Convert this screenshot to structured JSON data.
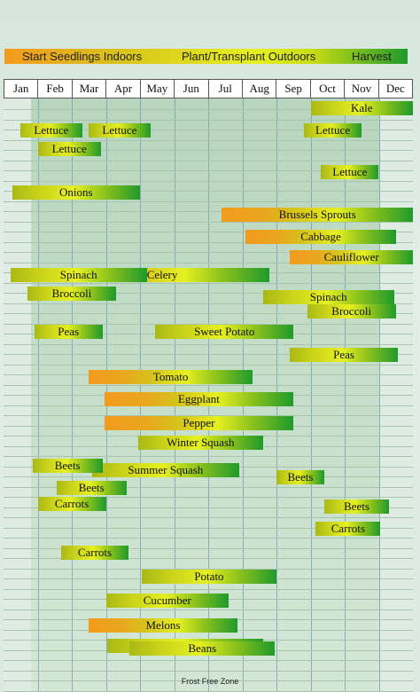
{
  "legend": {
    "start": "Start Seedlings Indoors",
    "plant": "Plant/Transplant Outdoors",
    "harvest": "Harvest"
  },
  "colors": {
    "start": "#f39a1e",
    "plant": "#e6f020",
    "harvest": "#1f9a2c",
    "frost_free_zone": "#c0dcc4"
  },
  "footer": {
    "frost_free_zone": "Frost Free Zone"
  },
  "chart_data": {
    "type": "bar",
    "subtype": "gantt",
    "months": [
      "Jan",
      "Feb",
      "Mar",
      "Apr",
      "May",
      "Jun",
      "Jul",
      "Aug",
      "Sep",
      "Oct",
      "Nov",
      "Dec"
    ],
    "frost_free_zone": [
      0.8,
      11.05
    ],
    "grid": true,
    "tasks": [
      {
        "label": "Kale",
        "start": 9.0,
        "end": 12.0,
        "phases": [
          "plant",
          "harvest"
        ]
      },
      {
        "label": "Lettuce",
        "start": 0.5,
        "end": 2.3,
        "phases": [
          "plant",
          "harvest"
        ]
      },
      {
        "label": "Lettuce",
        "start": 2.5,
        "end": 4.3,
        "phases": [
          "plant",
          "harvest"
        ]
      },
      {
        "label": "Lettuce",
        "start": 8.8,
        "end": 10.5,
        "phases": [
          "plant",
          "harvest"
        ]
      },
      {
        "label": "Lettuce",
        "start": 1.0,
        "end": 2.85,
        "phases": [
          "plant",
          "harvest"
        ]
      },
      {
        "label": "Lettuce",
        "start": 9.3,
        "end": 11.0,
        "phases": [
          "plant",
          "harvest"
        ]
      },
      {
        "label": "Onions",
        "start": 0.25,
        "end": 4.0,
        "phases": [
          "plant",
          "harvest"
        ]
      },
      {
        "label": "Brussels Sprouts",
        "start": 6.4,
        "end": 12.0,
        "phases": [
          "start",
          "plant",
          "harvest"
        ]
      },
      {
        "label": "Cabbage",
        "start": 7.1,
        "end": 11.5,
        "phases": [
          "start",
          "plant",
          "harvest"
        ]
      },
      {
        "label": "Cauliflower",
        "start": 8.4,
        "end": 12.0,
        "phases": [
          "start",
          "plant",
          "harvest"
        ]
      },
      {
        "label": "Celery",
        "start": 1.5,
        "end": 7.8,
        "phases": [
          "start",
          "plant",
          "harvest"
        ]
      },
      {
        "label": "Spinach",
        "start": 0.2,
        "end": 4.2,
        "phases": [
          "plant",
          "harvest"
        ]
      },
      {
        "label": "Spinach",
        "start": 7.6,
        "end": 11.45,
        "phases": [
          "plant",
          "harvest"
        ]
      },
      {
        "label": "Broccoli",
        "start": 0.7,
        "end": 3.3,
        "phases": [
          "plant",
          "harvest"
        ]
      },
      {
        "label": "Broccoli",
        "start": 8.9,
        "end": 11.5,
        "phases": [
          "plant",
          "harvest"
        ]
      },
      {
        "label": "Sweet Potato",
        "start": 4.45,
        "end": 8.5,
        "phases": [
          "plant",
          "harvest"
        ]
      },
      {
        "label": "Peas",
        "start": 0.9,
        "end": 2.9,
        "phases": [
          "plant",
          "harvest"
        ]
      },
      {
        "label": "Peas",
        "start": 8.4,
        "end": 11.55,
        "phases": [
          "plant",
          "harvest"
        ]
      },
      {
        "label": "Tomato",
        "start": 2.5,
        "end": 7.3,
        "phases": [
          "start",
          "plant",
          "harvest"
        ]
      },
      {
        "label": "Eggplant",
        "start": 2.95,
        "end": 8.5,
        "phases": [
          "start",
          "plant",
          "harvest"
        ]
      },
      {
        "label": "Pepper",
        "start": 2.95,
        "end": 8.5,
        "phases": [
          "start",
          "plant",
          "harvest"
        ]
      },
      {
        "label": "Winter Squash",
        "start": 3.95,
        "end": 7.6,
        "phases": [
          "plant",
          "harvest"
        ]
      },
      {
        "label": "Summer Squash",
        "start": 2.6,
        "end": 6.9,
        "phases": [
          "plant",
          "harvest"
        ]
      },
      {
        "label": "Beets",
        "start": 0.85,
        "end": 2.9,
        "phases": [
          "plant",
          "harvest"
        ]
      },
      {
        "label": "Beets",
        "start": 8.0,
        "end": 9.4,
        "phases": [
          "plant",
          "harvest"
        ]
      },
      {
        "label": "Beets",
        "start": 1.55,
        "end": 3.6,
        "phases": [
          "plant",
          "harvest"
        ]
      },
      {
        "label": "Beets",
        "start": 9.4,
        "end": 11.3,
        "phases": [
          "plant",
          "harvest"
        ]
      },
      {
        "label": "Carrots",
        "start": 1.0,
        "end": 3.0,
        "phases": [
          "plant",
          "harvest"
        ]
      },
      {
        "label": "Carrots",
        "start": 9.15,
        "end": 11.05,
        "phases": [
          "plant",
          "harvest"
        ]
      },
      {
        "label": "Carrots",
        "start": 1.7,
        "end": 3.65,
        "phases": [
          "plant",
          "harvest"
        ]
      },
      {
        "label": "Potato",
        "start": 4.05,
        "end": 8.0,
        "phases": [
          "plant",
          "harvest"
        ]
      },
      {
        "label": "Cucumber",
        "start": 3.0,
        "end": 6.6,
        "phases": [
          "plant",
          "harvest"
        ]
      },
      {
        "label": "Melons",
        "start": 2.5,
        "end": 6.85,
        "phases": [
          "start",
          "plant",
          "harvest"
        ]
      },
      {
        "label": "Corn",
        "start": 3.05,
        "end": 7.6,
        "phases": [
          "plant",
          "harvest"
        ]
      },
      {
        "label": "Beans",
        "start": 3.7,
        "end": 7.95,
        "phases": [
          "plant",
          "harvest"
        ]
      }
    ]
  }
}
